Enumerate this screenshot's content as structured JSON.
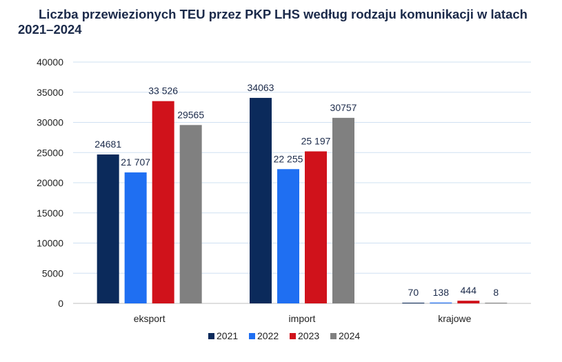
{
  "title_line1": "Liczba przewiezionych TEU przez PKP LHS według rodzaju komunikacji w latach",
  "title_line2": "2021–2024",
  "chart_data": {
    "type": "bar",
    "title": "Liczba przewiezionych TEU przez PKP LHS według rodzaju komunikacji w latach 2021–2024",
    "categories": [
      "eksport",
      "import",
      "krajowe"
    ],
    "ylim": [
      0,
      40000
    ],
    "yticks": [
      "0",
      "5000",
      "10000",
      "15000",
      "20000",
      "25000",
      "30000",
      "35000",
      "40000"
    ],
    "grid": true,
    "legend": "bottom",
    "series": [
      {
        "name": "2021",
        "color": "#0b2a5b",
        "values": [
          24681,
          34063,
          70
        ],
        "labels": [
          "24681",
          "34063",
          "70"
        ]
      },
      {
        "name": "2022",
        "color": "#1f6ff2",
        "values": [
          21707,
          22255,
          138
        ],
        "labels": [
          "21 707",
          "22 255",
          "138"
        ]
      },
      {
        "name": "2023",
        "color": "#d0121b",
        "values": [
          33526,
          25197,
          444
        ],
        "labels": [
          "33 526",
          "25 197",
          "444"
        ]
      },
      {
        "name": "2024",
        "color": "#808080",
        "values": [
          29565,
          30757,
          8
        ],
        "labels": [
          "29565",
          "30757",
          "8"
        ]
      }
    ]
  }
}
